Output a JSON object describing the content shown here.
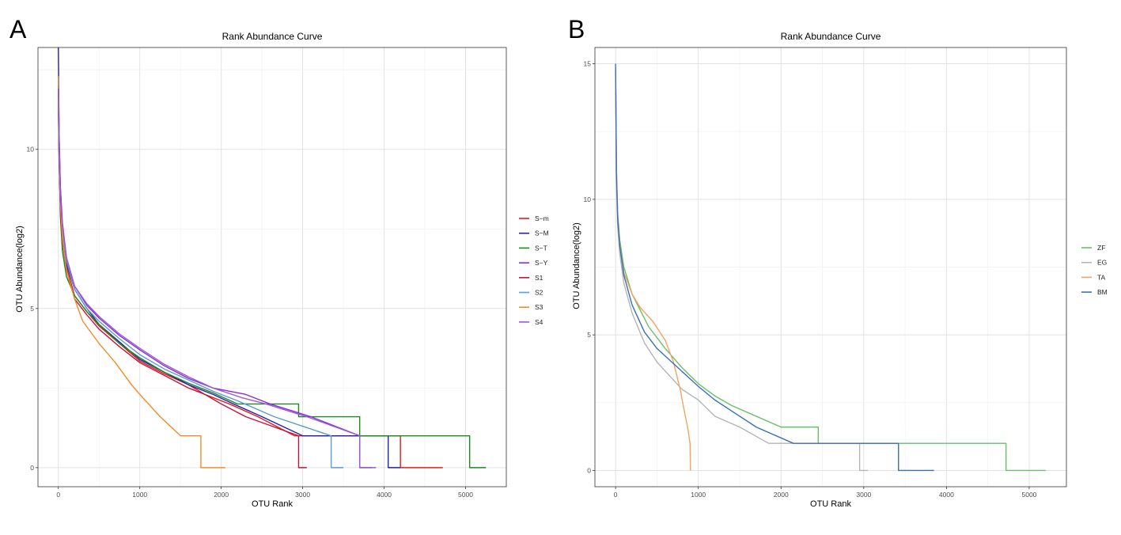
{
  "panels": [
    {
      "letter": "A",
      "title": "Rank Abundance Curve",
      "xlabel": "OTU Rank",
      "ylabel": "OTU Abundance(log2)"
    },
    {
      "letter": "B",
      "title": "Rank Abundance Curve",
      "xlabel": "OTU Rank",
      "ylabel": "OTU Abundance(log2)"
    }
  ],
  "chart_data": [
    {
      "type": "line",
      "title": "Rank Abundance Curve",
      "xlabel": "OTU Rank",
      "ylabel": "OTU Abundance(log2)",
      "xlim": [
        -250,
        5500
      ],
      "ylim": [
        -0.6,
        13.2
      ],
      "xticks": [
        0,
        1000,
        2000,
        3000,
        4000,
        5000
      ],
      "yticks": [
        0,
        5,
        10
      ],
      "grid": true,
      "legend_position": "right",
      "series": [
        {
          "name": "S−m",
          "color": "#e41a1c",
          "points": [
            [
              0,
              11.3
            ],
            [
              10,
              9.5
            ],
            [
              25,
              8.2
            ],
            [
              50,
              7.3
            ],
            [
              100,
              6.3
            ],
            [
              200,
              5.4
            ],
            [
              350,
              4.9
            ],
            [
              500,
              4.45
            ],
            [
              750,
              3.9
            ],
            [
              1000,
              3.35
            ],
            [
              1300,
              2.95
            ],
            [
              1600,
              2.6
            ],
            [
              1800,
              2.3
            ],
            [
              2100,
              2.0
            ],
            [
              2450,
              1.6
            ],
            [
              2900,
              1.0
            ],
            [
              4200,
              1.0
            ],
            [
              4200,
              0.0
            ],
            [
              4720,
              0.0
            ]
          ]
        },
        {
          "name": "S−M",
          "color": "#2020b0",
          "points": [
            [
              0,
              13.2
            ],
            [
              10,
              10.5
            ],
            [
              25,
              8.8
            ],
            [
              50,
              7.5
            ],
            [
              100,
              6.4
            ],
            [
              200,
              5.6
            ],
            [
              350,
              5.0
            ],
            [
              500,
              4.5
            ],
            [
              750,
              3.95
            ],
            [
              1000,
              3.4
            ],
            [
              1300,
              3.0
            ],
            [
              1600,
              2.6
            ],
            [
              1900,
              2.3
            ],
            [
              2150,
              2.0
            ],
            [
              2500,
              1.6
            ],
            [
              3000,
              1.0
            ],
            [
              4050,
              1.0
            ],
            [
              4050,
              0.0
            ],
            [
              4200,
              0.0
            ]
          ]
        },
        {
          "name": "S−T",
          "color": "#1a8a1a",
          "points": [
            [
              0,
              11.8
            ],
            [
              10,
              9.7
            ],
            [
              25,
              7.9
            ],
            [
              50,
              6.8
            ],
            [
              100,
              6.0
            ],
            [
              200,
              5.4
            ],
            [
              350,
              4.9
            ],
            [
              500,
              4.5
            ],
            [
              750,
              3.9
            ],
            [
              1000,
              3.45
            ],
            [
              1300,
              3.0
            ],
            [
              1600,
              2.65
            ],
            [
              1900,
              2.35
            ],
            [
              2200,
              2.0
            ],
            [
              2950,
              2.0
            ],
            [
              2950,
              1.6
            ],
            [
              3700,
              1.6
            ],
            [
              3700,
              1.0
            ],
            [
              5050,
              1.0
            ],
            [
              5050,
              0.0
            ],
            [
              5250,
              0.0
            ]
          ]
        },
        {
          "name": "S−Y",
          "color": "#8a2be2",
          "points": [
            [
              0,
              12.0
            ],
            [
              10,
              10.2
            ],
            [
              25,
              8.8
            ],
            [
              50,
              7.7
            ],
            [
              100,
              6.6
            ],
            [
              200,
              5.7
            ],
            [
              350,
              5.1
            ],
            [
              500,
              4.7
            ],
            [
              750,
              4.15
            ],
            [
              1000,
              3.7
            ],
            [
              1300,
              3.2
            ],
            [
              1600,
              2.8
            ],
            [
              1900,
              2.5
            ],
            [
              2300,
              2.3
            ],
            [
              2600,
              2.0
            ],
            [
              3100,
              1.6
            ],
            [
              3700,
              1.0
            ],
            [
              3700,
              0.0
            ],
            [
              3850,
              0.0
            ]
          ]
        },
        {
          "name": "S1",
          "color": "#c0143c",
          "points": [
            [
              0,
              11.5
            ],
            [
              10,
              9.6
            ],
            [
              25,
              8.0
            ],
            [
              50,
              7.1
            ],
            [
              100,
              6.2
            ],
            [
              200,
              5.3
            ],
            [
              350,
              4.8
            ],
            [
              500,
              4.35
            ],
            [
              750,
              3.8
            ],
            [
              1000,
              3.3
            ],
            [
              1300,
              2.9
            ],
            [
              1600,
              2.5
            ],
            [
              1800,
              2.3
            ],
            [
              2000,
              2.0
            ],
            [
              2300,
              1.6
            ],
            [
              2950,
              1.0
            ],
            [
              2950,
              0.0
            ],
            [
              3050,
              0.0
            ]
          ]
        },
        {
          "name": "S2",
          "color": "#5a9bd5",
          "points": [
            [
              0,
              11.6
            ],
            [
              10,
              9.8
            ],
            [
              25,
              8.3
            ],
            [
              50,
              7.4
            ],
            [
              100,
              6.5
            ],
            [
              200,
              5.6
            ],
            [
              350,
              5.0
            ],
            [
              500,
              4.6
            ],
            [
              750,
              4.05
            ],
            [
              1000,
              3.55
            ],
            [
              1300,
              3.1
            ],
            [
              1600,
              2.75
            ],
            [
              1900,
              2.4
            ],
            [
              2200,
              2.1
            ],
            [
              2650,
              1.6
            ],
            [
              3350,
              1.0
            ],
            [
              3350,
              0.0
            ],
            [
              3500,
              0.0
            ]
          ]
        },
        {
          "name": "S3",
          "color": "#f28c28",
          "points": [
            [
              0,
              12.3
            ],
            [
              10,
              10.0
            ],
            [
              25,
              8.3
            ],
            [
              50,
              7.2
            ],
            [
              100,
              6.2
            ],
            [
              200,
              5.3
            ],
            [
              300,
              4.6
            ],
            [
              500,
              3.9
            ],
            [
              700,
              3.3
            ],
            [
              900,
              2.6
            ],
            [
              1000,
              2.3
            ],
            [
              1250,
              1.6
            ],
            [
              1500,
              1.0
            ],
            [
              1750,
              1.0
            ],
            [
              1750,
              0.0
            ],
            [
              2050,
              0.0
            ]
          ]
        },
        {
          "name": "S4",
          "color": "#9b59d0",
          "points": [
            [
              0,
              11.9
            ],
            [
              10,
              10.0
            ],
            [
              25,
              8.5
            ],
            [
              50,
              7.6
            ],
            [
              100,
              6.6
            ],
            [
              200,
              5.7
            ],
            [
              350,
              5.15
            ],
            [
              500,
              4.75
            ],
            [
              750,
              4.2
            ],
            [
              1000,
              3.75
            ],
            [
              1300,
              3.25
            ],
            [
              1600,
              2.85
            ],
            [
              1900,
              2.5
            ],
            [
              2250,
              2.2
            ],
            [
              2550,
              2.0
            ],
            [
              3050,
              1.6
            ],
            [
              3700,
              1.0
            ],
            [
              3700,
              0.0
            ],
            [
              3900,
              0.0
            ]
          ]
        }
      ]
    },
    {
      "type": "line",
      "title": "Rank Abundance Curve",
      "xlabel": "OTU Rank",
      "ylabel": "OTU Abundance(log2)",
      "xlim": [
        -250,
        5450
      ],
      "ylim": [
        -0.6,
        15.6
      ],
      "xticks": [
        0,
        1000,
        2000,
        3000,
        4000,
        5000
      ],
      "yticks": [
        0,
        5,
        10,
        15
      ],
      "grid": true,
      "legend_position": "right",
      "series": [
        {
          "name": "ZF",
          "color": "#6abf69",
          "points": [
            [
              0,
              14.8
            ],
            [
              10,
              11.0
            ],
            [
              25,
              9.5
            ],
            [
              50,
              8.5
            ],
            [
              100,
              7.5
            ],
            [
              200,
              6.5
            ],
            [
              400,
              5.3
            ],
            [
              600,
              4.5
            ],
            [
              800,
              3.8
            ],
            [
              1000,
              3.2
            ],
            [
              1200,
              2.75
            ],
            [
              1400,
              2.4
            ],
            [
              1700,
              2.0
            ],
            [
              2000,
              1.6
            ],
            [
              2450,
              1.6
            ],
            [
              2450,
              1.0
            ],
            [
              4720,
              1.0
            ],
            [
              4720,
              0.0
            ],
            [
              5200,
              0.0
            ]
          ]
        },
        {
          "name": "EG",
          "color": "#b5b5b5",
          "points": [
            [
              0,
              14.6
            ],
            [
              10,
              10.6
            ],
            [
              25,
              9.0
            ],
            [
              50,
              8.0
            ],
            [
              100,
              6.9
            ],
            [
              200,
              5.8
            ],
            [
              350,
              4.7
            ],
            [
              500,
              4.0
            ],
            [
              650,
              3.5
            ],
            [
              800,
              3.0
            ],
            [
              1000,
              2.6
            ],
            [
              1200,
              2.0
            ],
            [
              1500,
              1.6
            ],
            [
              1850,
              1.0
            ],
            [
              2950,
              1.0
            ],
            [
              2950,
              0.0
            ],
            [
              3050,
              0.0
            ]
          ]
        },
        {
          "name": "TA",
          "color": "#f4a460",
          "points": [
            [
              0,
              14.7
            ],
            [
              10,
              11.2
            ],
            [
              25,
              9.4
            ],
            [
              50,
              8.3
            ],
            [
              100,
              7.3
            ],
            [
              200,
              6.5
            ],
            [
              300,
              6.0
            ],
            [
              450,
              5.5
            ],
            [
              600,
              4.8
            ],
            [
              700,
              4.0
            ],
            [
              780,
              3.0
            ],
            [
              830,
              2.2
            ],
            [
              870,
              1.6
            ],
            [
              900,
              1.0
            ],
            [
              905,
              0.0
            ]
          ]
        },
        {
          "name": "BM",
          "color": "#3a6fb5",
          "points": [
            [
              0,
              15.0
            ],
            [
              10,
              11.0
            ],
            [
              25,
              9.3
            ],
            [
              50,
              8.3
            ],
            [
              100,
              7.2
            ],
            [
              200,
              6.1
            ],
            [
              350,
              5.1
            ],
            [
              500,
              4.5
            ],
            [
              750,
              3.8
            ],
            [
              1000,
              3.1
            ],
            [
              1200,
              2.6
            ],
            [
              1400,
              2.2
            ],
            [
              1700,
              1.6
            ],
            [
              2150,
              1.0
            ],
            [
              3420,
              1.0
            ],
            [
              3420,
              0.0
            ],
            [
              3850,
              0.0
            ]
          ]
        }
      ]
    }
  ]
}
